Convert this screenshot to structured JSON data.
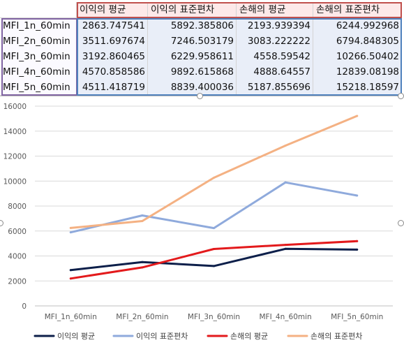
{
  "table": {
    "headers": [
      "이익의 평균",
      "이익의 표준편차",
      "손해의 평균",
      "손해의 표준편차"
    ],
    "rows": [
      {
        "label": "MFI_1n_60min",
        "values": [
          "2863.747541",
          "5892.385806",
          "2193.939394",
          "6244.992968"
        ]
      },
      {
        "label": "MFI_2n_60min",
        "values": [
          "3511.697674",
          "7246.503179",
          "3083.222222",
          "6794.848305"
        ]
      },
      {
        "label": "MFI_3n_60min",
        "values": [
          "3192.860465",
          "6229.958611",
          "4558.59542",
          "10266.50402"
        ]
      },
      {
        "label": "MFI_4n_60min",
        "values": [
          "4570.858586",
          "9892.615868",
          "4888.64557",
          "12839.08198"
        ]
      },
      {
        "label": "MFI_5n_60min",
        "values": [
          "4511.418719",
          "8839.400036",
          "5187.855696",
          "15218.18597"
        ]
      }
    ]
  },
  "chart_data": {
    "type": "line",
    "categories": [
      "MFI_1n_60min",
      "MFI_2n_60min",
      "MFI_3n_60min",
      "MFI_4n_60min",
      "MFI_5n_60min"
    ],
    "series": [
      {
        "name": "이익의 평균",
        "color": "#0d1f4a",
        "values": [
          2863.747541,
          3511.697674,
          3192.860465,
          4570.858586,
          4511.418719
        ]
      },
      {
        "name": "이익의 표준편차",
        "color": "#8faadc",
        "values": [
          5892.385806,
          7246.503179,
          6229.958611,
          9892.615868,
          8839.400036
        ]
      },
      {
        "name": "손해의 평균",
        "color": "#e31a1c",
        "values": [
          2193.939394,
          3083.222222,
          4558.59542,
          4888.64557,
          5187.855696
        ]
      },
      {
        "name": "손해의 표준편차",
        "color": "#f4b183",
        "values": [
          6244.992968,
          6794.848305,
          10266.50402,
          12839.08198,
          15218.18597
        ]
      }
    ],
    "yticks": [
      "0",
      "2000",
      "4000",
      "6000",
      "8000",
      "10000",
      "12000",
      "14000",
      "16000"
    ],
    "ylim": [
      0,
      16000
    ],
    "grid": true,
    "legend_position": "bottom"
  }
}
